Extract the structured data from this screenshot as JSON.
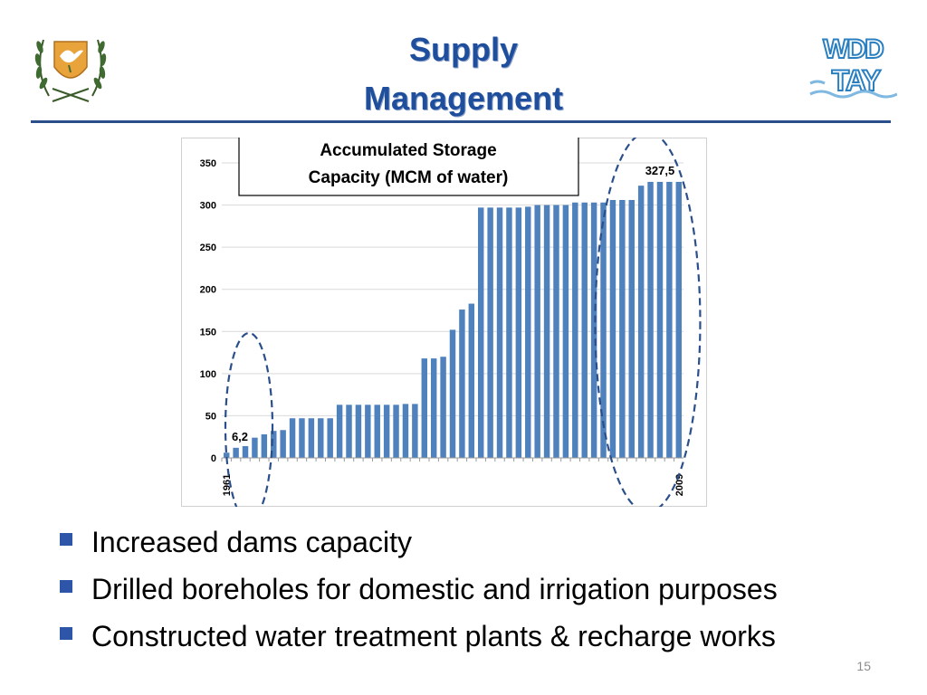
{
  "slide": {
    "title_lines": [
      "Supply",
      "Management"
    ],
    "page_number": "15",
    "emblem_icon": "cyprus-coat-of-arms-icon",
    "logo": {
      "icon": "wdd-tay-logo-icon",
      "text_top": "WDD",
      "text_bottom": "TAY"
    },
    "accent_color": "#1f4e9c",
    "bullets": [
      "Increased dams capacity",
      "Drilled boreholes for domestic and irrigation purposes",
      "Constructed water treatment plants & recharge works"
    ]
  },
  "chart_data": {
    "type": "bar",
    "title": "Accumulated Storage Capacity (MCM of water)",
    "bar_color": "#4f81bd",
    "ylim": [
      0,
      350
    ],
    "yticks": [
      "0",
      "50",
      "100",
      "150",
      "200",
      "250",
      "300",
      "350"
    ],
    "yticks_values": [
      0,
      50,
      100,
      150,
      200,
      250,
      300,
      350
    ],
    "x_start_label": "1961",
    "x_end_label": "2009",
    "grid": true,
    "legend": "none",
    "values": [
      6.2,
      12,
      14,
      24,
      28,
      32,
      33,
      47,
      47,
      47,
      47,
      47,
      63,
      63,
      63,
      63,
      63,
      63,
      63,
      64,
      64,
      118,
      118,
      120,
      152,
      176,
      183,
      297,
      297,
      297,
      297,
      297,
      298,
      300,
      300,
      300,
      300,
      303,
      303,
      303,
      303,
      306,
      306,
      306,
      323,
      327.5,
      327.5,
      327.5,
      327.5
    ],
    "annotations": [
      "6,2",
      "327,5"
    ]
  }
}
